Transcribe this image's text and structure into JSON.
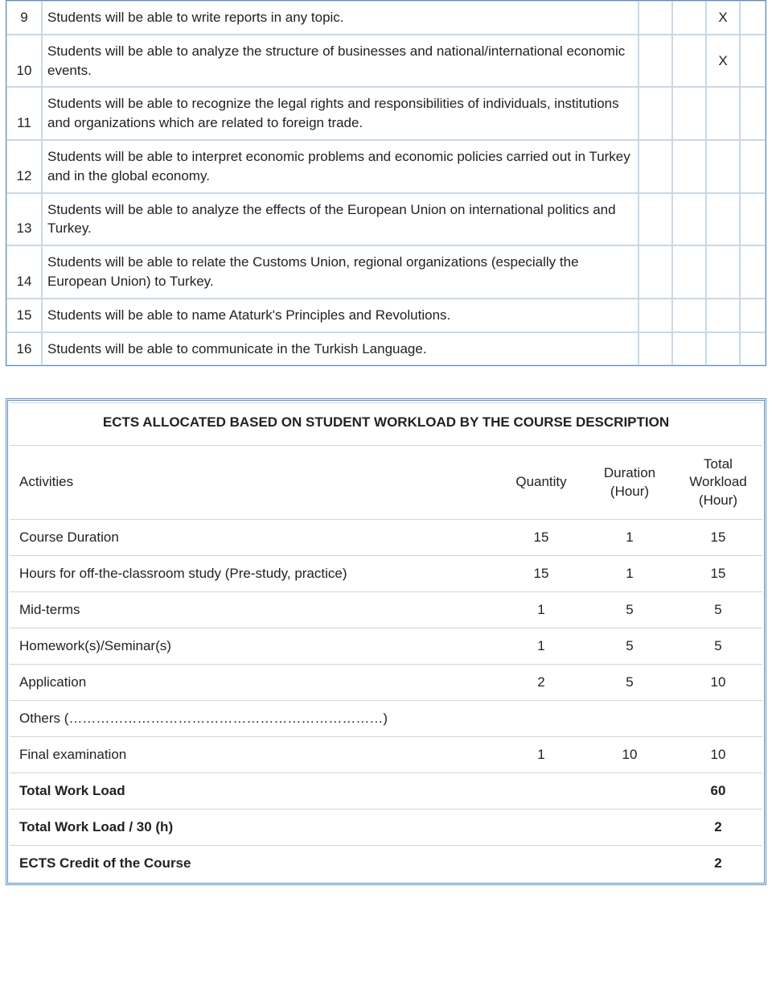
{
  "outcomes": {
    "rows": [
      {
        "num": "9",
        "text": "Students will be able to write reports in any topic.",
        "marks": [
          "",
          "",
          "X",
          ""
        ]
      },
      {
        "num": "10",
        "text": "Students will be able to analyze the structure of businesses and national/international economic events.",
        "marks": [
          "",
          "",
          "X",
          ""
        ]
      },
      {
        "num": "11",
        "text": "Students will be able to recognize the legal rights and responsibilities of individuals, institutions and organizations which are related to foreign trade.",
        "marks": [
          "",
          "",
          "",
          ""
        ]
      },
      {
        "num": "12",
        "text": "Students will be able to interpret economic problems and economic policies carried out in Turkey and in the global economy.",
        "marks": [
          "",
          "",
          "",
          ""
        ]
      },
      {
        "num": "13",
        "text": "Students will be able to analyze the effects of the European Union on international politics and Turkey.",
        "marks": [
          "",
          "",
          "",
          ""
        ]
      },
      {
        "num": "14",
        "text": "Students will be able to relate the Customs Union, regional organizations (especially the European Union) to Turkey.",
        "marks": [
          "",
          "",
          "",
          ""
        ]
      },
      {
        "num": "15",
        "text": "Students will be able to name Ataturk's Principles and Revolutions.",
        "marks": [
          "",
          "",
          "",
          ""
        ]
      },
      {
        "num": "16",
        "text": "Students will be able to communicate in the Turkish Language.",
        "marks": [
          "",
          "",
          "",
          ""
        ]
      }
    ],
    "border_color": "#5b8fbf",
    "cell_border_color": "#c9d8e6"
  },
  "ects": {
    "title": "ECTS ALLOCATED BASED ON STUDENT WORKLOAD BY THE COURSE DESCRIPTION",
    "columns": {
      "activities": "Activities",
      "quantity": "Quantity",
      "duration": "Duration (Hour)",
      "total": "Total Workload (Hour)"
    },
    "rows": [
      {
        "label": "Course Duration",
        "q": "15",
        "d": "1",
        "t": "15",
        "bold": false
      },
      {
        "label": "Hours for off-the-classroom study (Pre-study, practice)",
        "q": "15",
        "d": "1",
        "t": "15",
        "bold": false
      },
      {
        "label": "Mid-terms",
        "q": "1",
        "d": "5",
        "t": "5",
        "bold": false
      },
      {
        "label": "Homework(s)/Seminar(s)",
        "q": "1",
        "d": "5",
        "t": "5",
        "bold": false
      },
      {
        "label": "Application",
        "q": "2",
        "d": "5",
        "t": "10",
        "bold": false
      },
      {
        "label": "Others (……………………………………………………………)",
        "q": "",
        "d": "",
        "t": "",
        "bold": false
      },
      {
        "label": "Final examination",
        "q": "1",
        "d": "10",
        "t": "10",
        "bold": false
      },
      {
        "label": "Total Work Load",
        "q": "",
        "d": "",
        "t": "60",
        "bold": true
      },
      {
        "label": "Total Work Load / 30 (h)",
        "q": "",
        "d": "",
        "t": "2",
        "bold": true
      },
      {
        "label": "ECTS Credit of the Course",
        "q": "",
        "d": "",
        "t": "2",
        "bold": true
      }
    ],
    "border_color": "#5b8fbf",
    "cell_border_color": "#c9d8e6"
  }
}
